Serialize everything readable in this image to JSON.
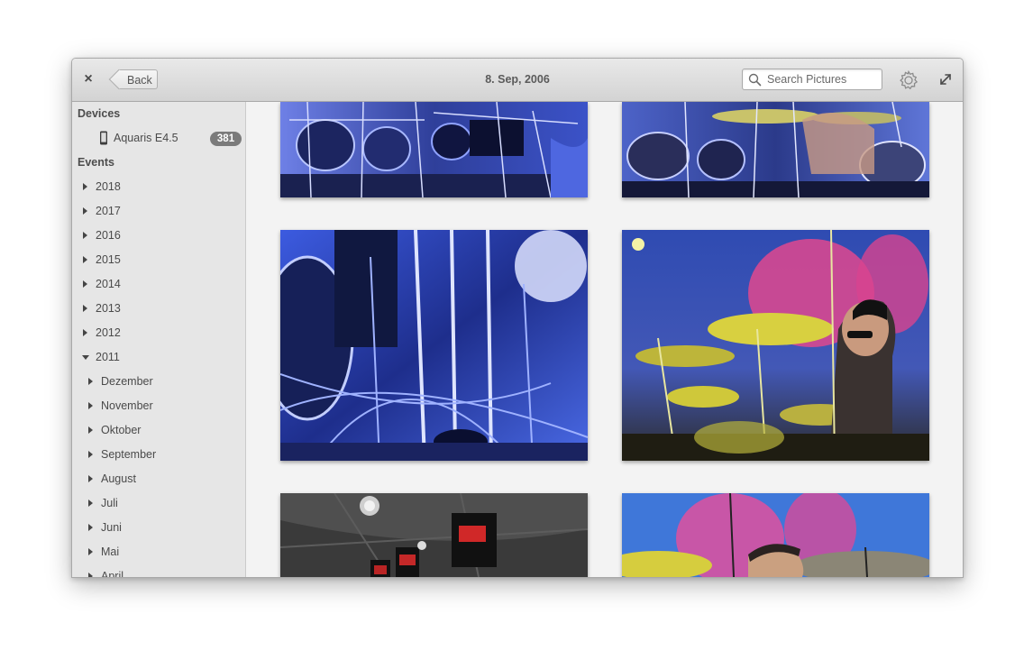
{
  "window": {
    "title": "8. Sep, 2006",
    "back_label": "Back",
    "close_glyph": "×"
  },
  "search": {
    "placeholder": "Search Pictures",
    "value": ""
  },
  "sidebar": {
    "devices_heading": "Devices",
    "device": {
      "name": "Aquaris E4.5",
      "count": "381"
    },
    "events_heading": "Events",
    "years": [
      "2018",
      "2017",
      "2016",
      "2015",
      "2014",
      "2013",
      "2012"
    ],
    "expanded_year": "2011",
    "months": [
      "Dezember",
      "November",
      "Oktober",
      "September",
      "August",
      "Juli",
      "Juni",
      "Mai",
      "April"
    ]
  },
  "icons": {
    "close": "close-icon",
    "back": "back-arrow-icon",
    "search": "search-icon",
    "settings": "gear-icon",
    "maximize": "maximize-icon",
    "device": "phone-icon",
    "expander_collapsed": "triangle-right-icon",
    "expander_expanded": "triangle-down-icon"
  },
  "photos": [
    {
      "subject": "drum-kit-blue-top-left"
    },
    {
      "subject": "drum-kit-blue-top-right"
    },
    {
      "subject": "drum-stands-blue-closeup"
    },
    {
      "subject": "drummer-yellow-cymbals"
    },
    {
      "subject": "ceiling-banners-meinl"
    },
    {
      "subject": "drummer-blue-pink-backdrop"
    }
  ],
  "colors": {
    "titlebar": "#dedede",
    "sidebar": "#e6e6e6",
    "badge": "#7b7b7b",
    "content": "#f3f3f3"
  }
}
